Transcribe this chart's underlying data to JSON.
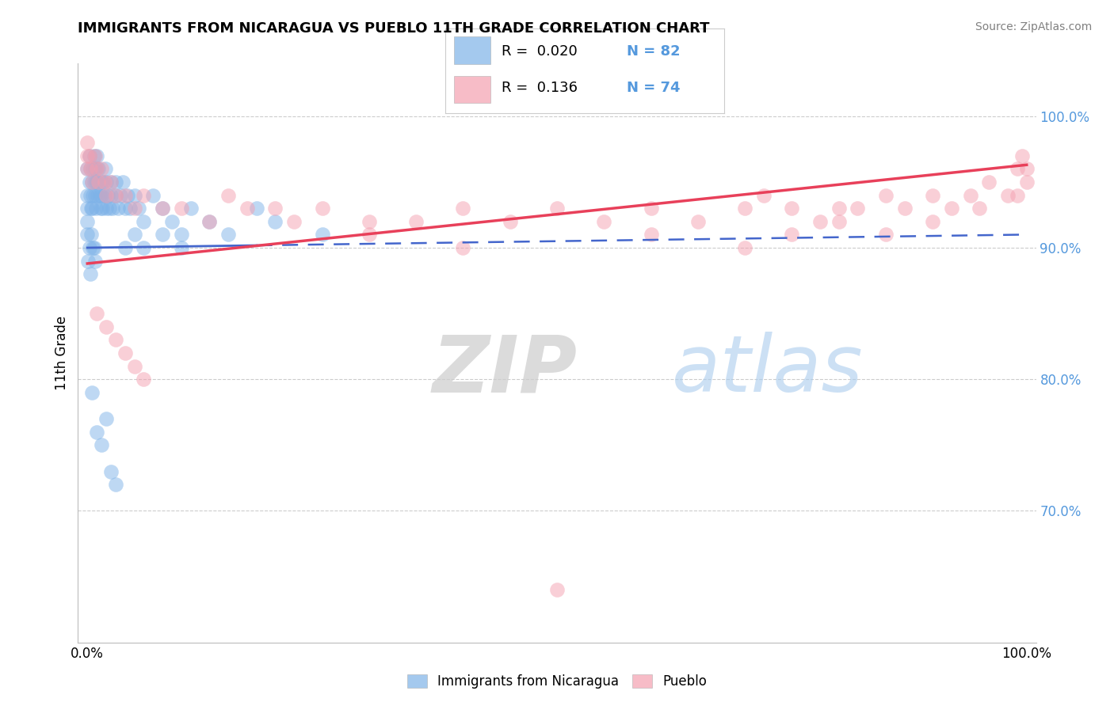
{
  "title": "IMMIGRANTS FROM NICARAGUA VS PUEBLO 11TH GRADE CORRELATION CHART",
  "source": "Source: ZipAtlas.com",
  "ylabel": "11th Grade",
  "blue_color": "#7EB3E8",
  "pink_color": "#F4A0B0",
  "blue_line_color": "#4466CC",
  "pink_line_color": "#E8405A",
  "legend_r_blue": "R =  0.020",
  "legend_n_blue": "N = 82",
  "legend_r_pink": "R =  0.136",
  "legend_n_pink": "N = 74",
  "watermark_zip": "ZIP",
  "watermark_atlas": "atlas",
  "grid_color": "#CCCCCC",
  "background_color": "#FFFFFF",
  "right_tick_color": "#5599DD",
  "blue_intercept": 0.9,
  "blue_slope": 0.01,
  "pink_intercept": 0.888,
  "pink_slope": 0.075
}
